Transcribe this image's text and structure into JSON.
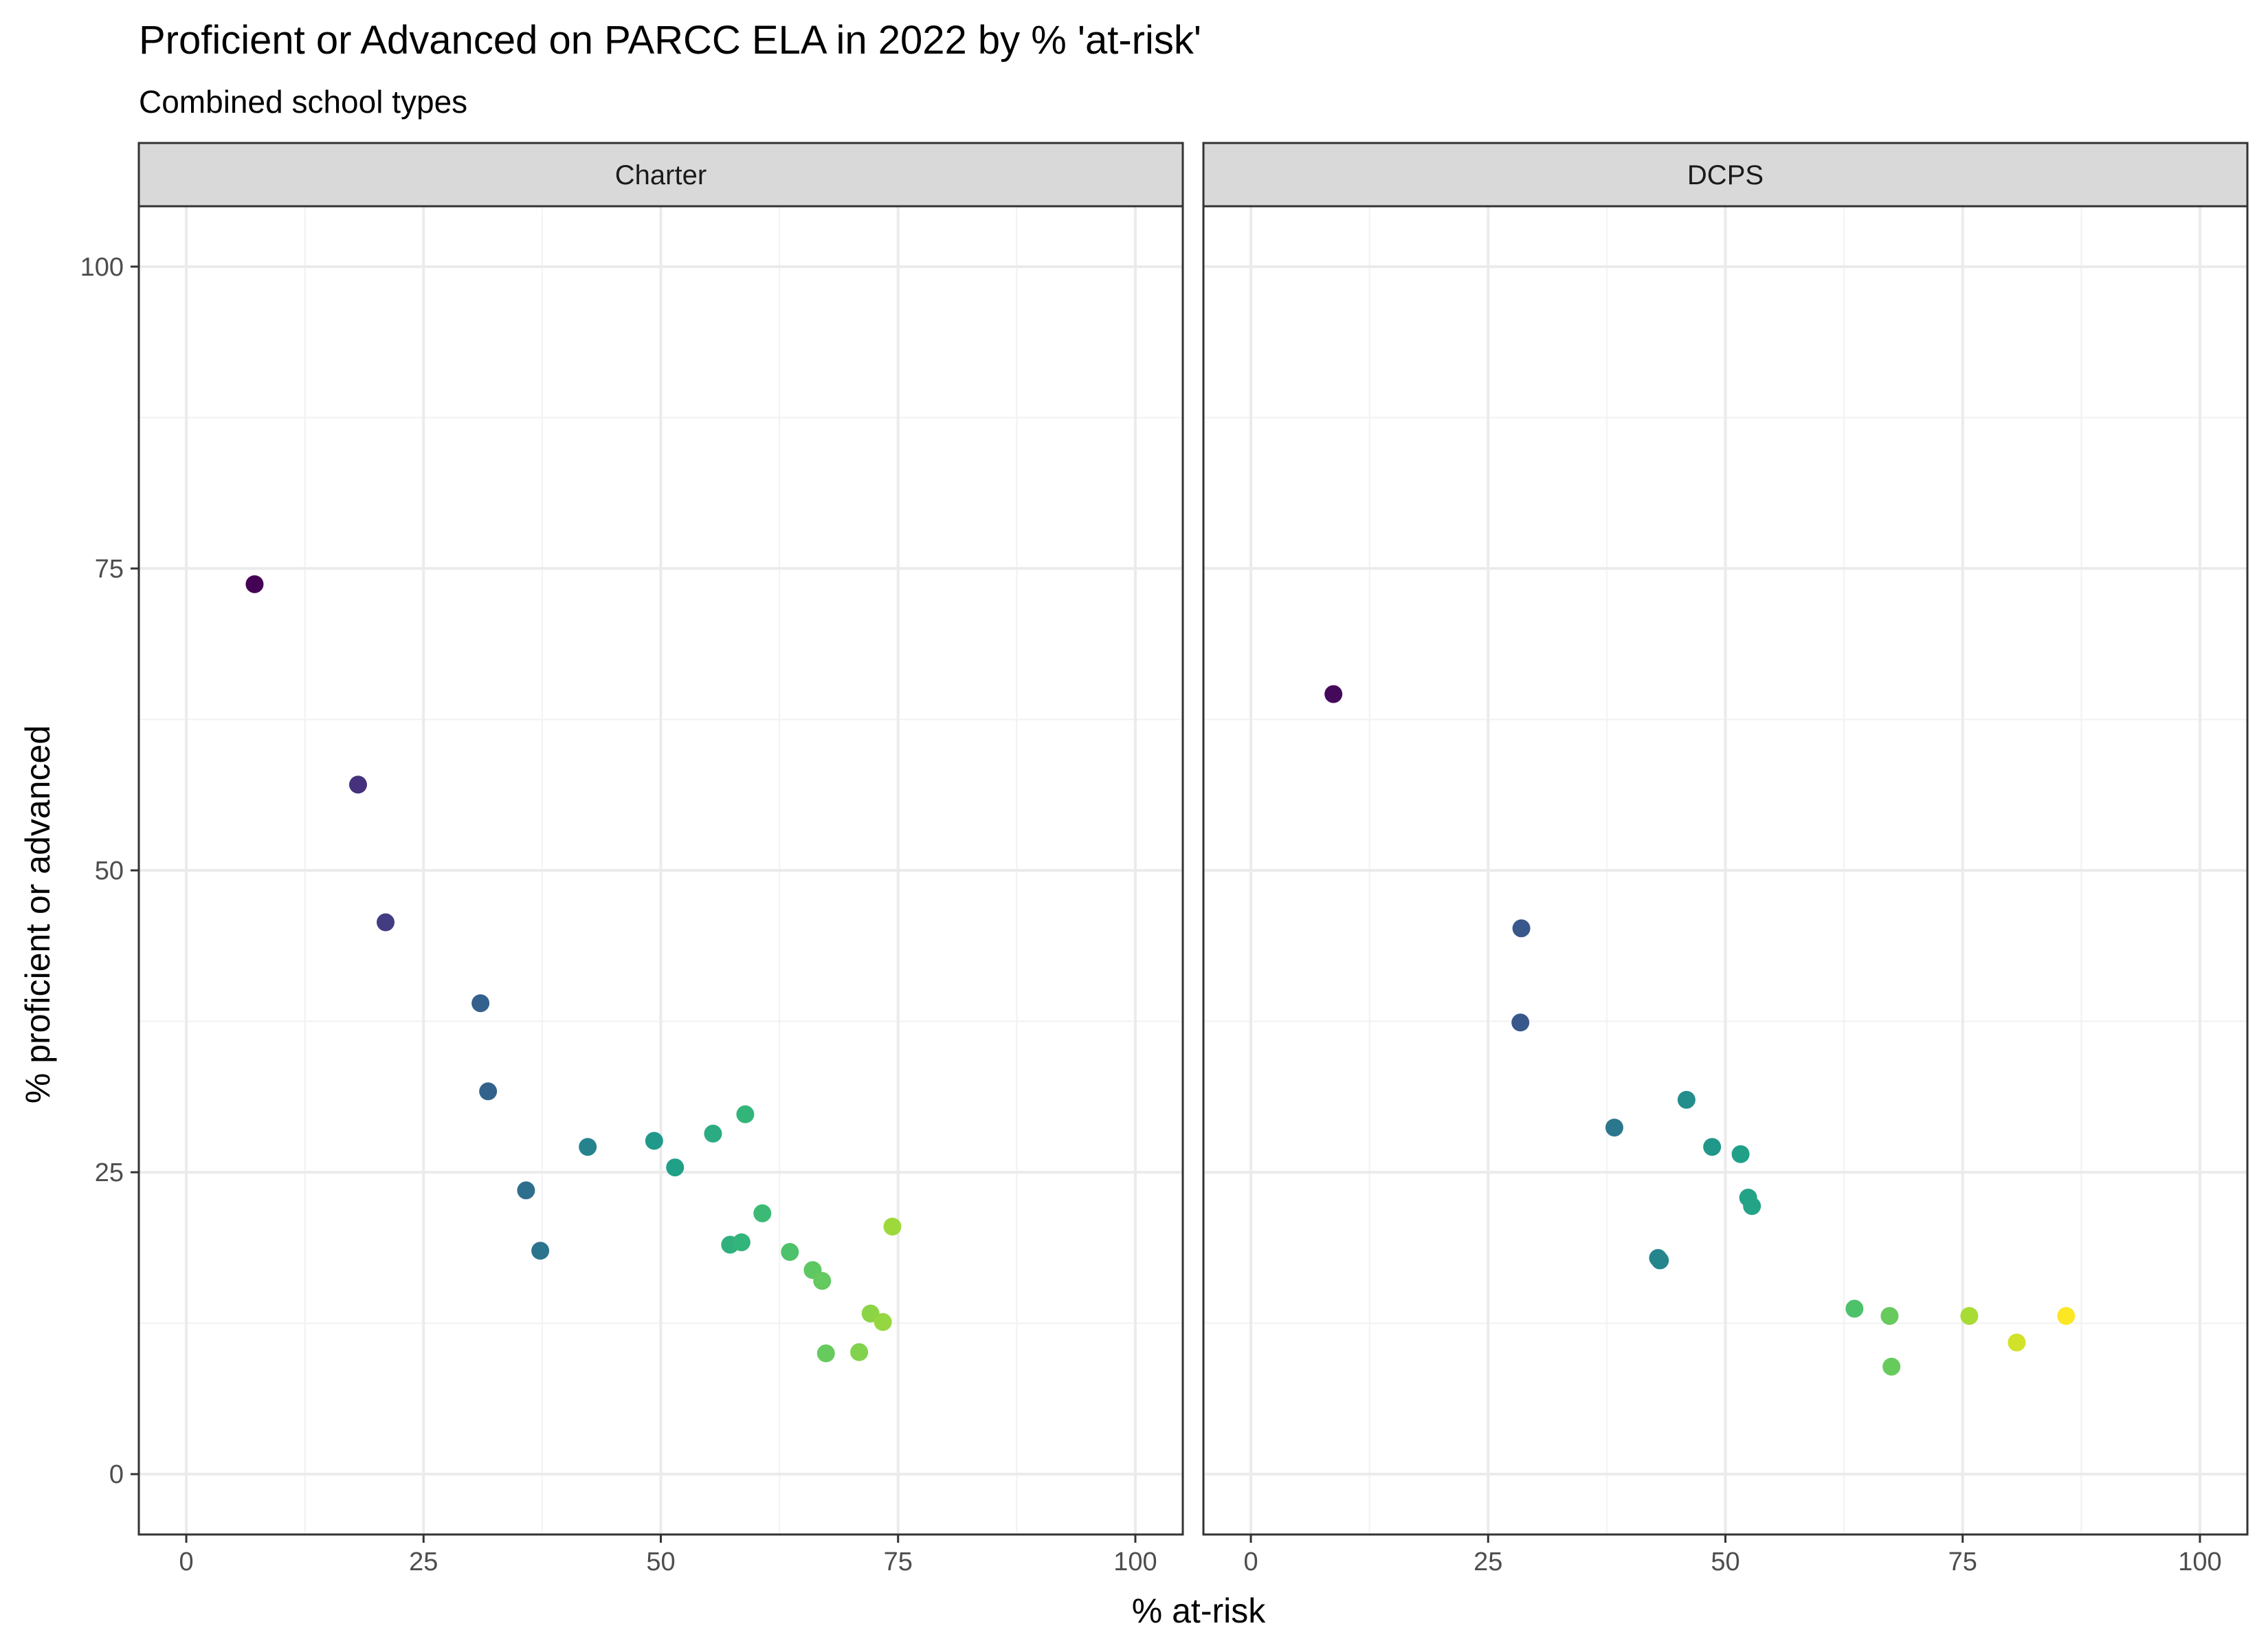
{
  "title": "Proficient or Advanced on PARCC ELA in 2022 by % 'at-risk'",
  "subtitle": "Combined school types",
  "chart_data": {
    "type": "scatter",
    "title": "Proficient or Advanced on PARCC ELA in 2022 by % 'at-risk'",
    "subtitle": "Combined school types",
    "xlabel": "% at-risk",
    "ylabel": "% proficient or advanced",
    "xlim": [
      -5,
      105
    ],
    "ylim": [
      -5,
      105
    ],
    "x_ticks": [
      0,
      25,
      50,
      75,
      100
    ],
    "y_ticks": [
      0,
      25,
      50,
      75,
      100
    ],
    "grid": true,
    "color_scale": "viridis (by % at-risk)",
    "color_range": [
      7,
      86
    ],
    "panels": [
      {
        "name": "Charter",
        "points": [
          {
            "x": 7.2,
            "y": 73.7
          },
          {
            "x": 18.1,
            "y": 57.1
          },
          {
            "x": 21.0,
            "y": 45.7
          },
          {
            "x": 31.0,
            "y": 39.0
          },
          {
            "x": 31.8,
            "y": 31.7
          },
          {
            "x": 35.8,
            "y": 23.5
          },
          {
            "x": 37.3,
            "y": 18.5
          },
          {
            "x": 42.3,
            "y": 27.1
          },
          {
            "x": 49.3,
            "y": 27.6
          },
          {
            "x": 51.5,
            "y": 25.4
          },
          {
            "x": 55.5,
            "y": 28.2
          },
          {
            "x": 57.3,
            "y": 19.0
          },
          {
            "x": 58.5,
            "y": 19.2
          },
          {
            "x": 58.9,
            "y": 29.8
          },
          {
            "x": 60.7,
            "y": 21.6
          },
          {
            "x": 63.6,
            "y": 18.4
          },
          {
            "x": 66.0,
            "y": 16.9
          },
          {
            "x": 67.0,
            "y": 16.0
          },
          {
            "x": 67.4,
            "y": 10.0
          },
          {
            "x": 70.9,
            "y": 10.1
          },
          {
            "x": 72.1,
            "y": 13.3
          },
          {
            "x": 73.4,
            "y": 12.6
          },
          {
            "x": 74.4,
            "y": 20.5
          }
        ]
      },
      {
        "name": "DCPS",
        "points": [
          {
            "x": 8.7,
            "y": 64.6
          },
          {
            "x": 28.5,
            "y": 45.2
          },
          {
            "x": 28.4,
            "y": 37.4
          },
          {
            "x": 38.3,
            "y": 28.7
          },
          {
            "x": 42.9,
            "y": 17.9
          },
          {
            "x": 43.1,
            "y": 17.7
          },
          {
            "x": 45.9,
            "y": 31.0
          },
          {
            "x": 48.6,
            "y": 27.1
          },
          {
            "x": 51.6,
            "y": 26.5
          },
          {
            "x": 52.4,
            "y": 22.9
          },
          {
            "x": 52.8,
            "y": 22.2
          },
          {
            "x": 63.6,
            "y": 13.7
          },
          {
            "x": 67.3,
            "y": 13.1
          },
          {
            "x": 67.5,
            "y": 8.9
          },
          {
            "x": 75.7,
            "y": 13.1
          },
          {
            "x": 80.7,
            "y": 10.9
          },
          {
            "x": 85.9,
            "y": 13.1
          }
        ]
      }
    ]
  }
}
